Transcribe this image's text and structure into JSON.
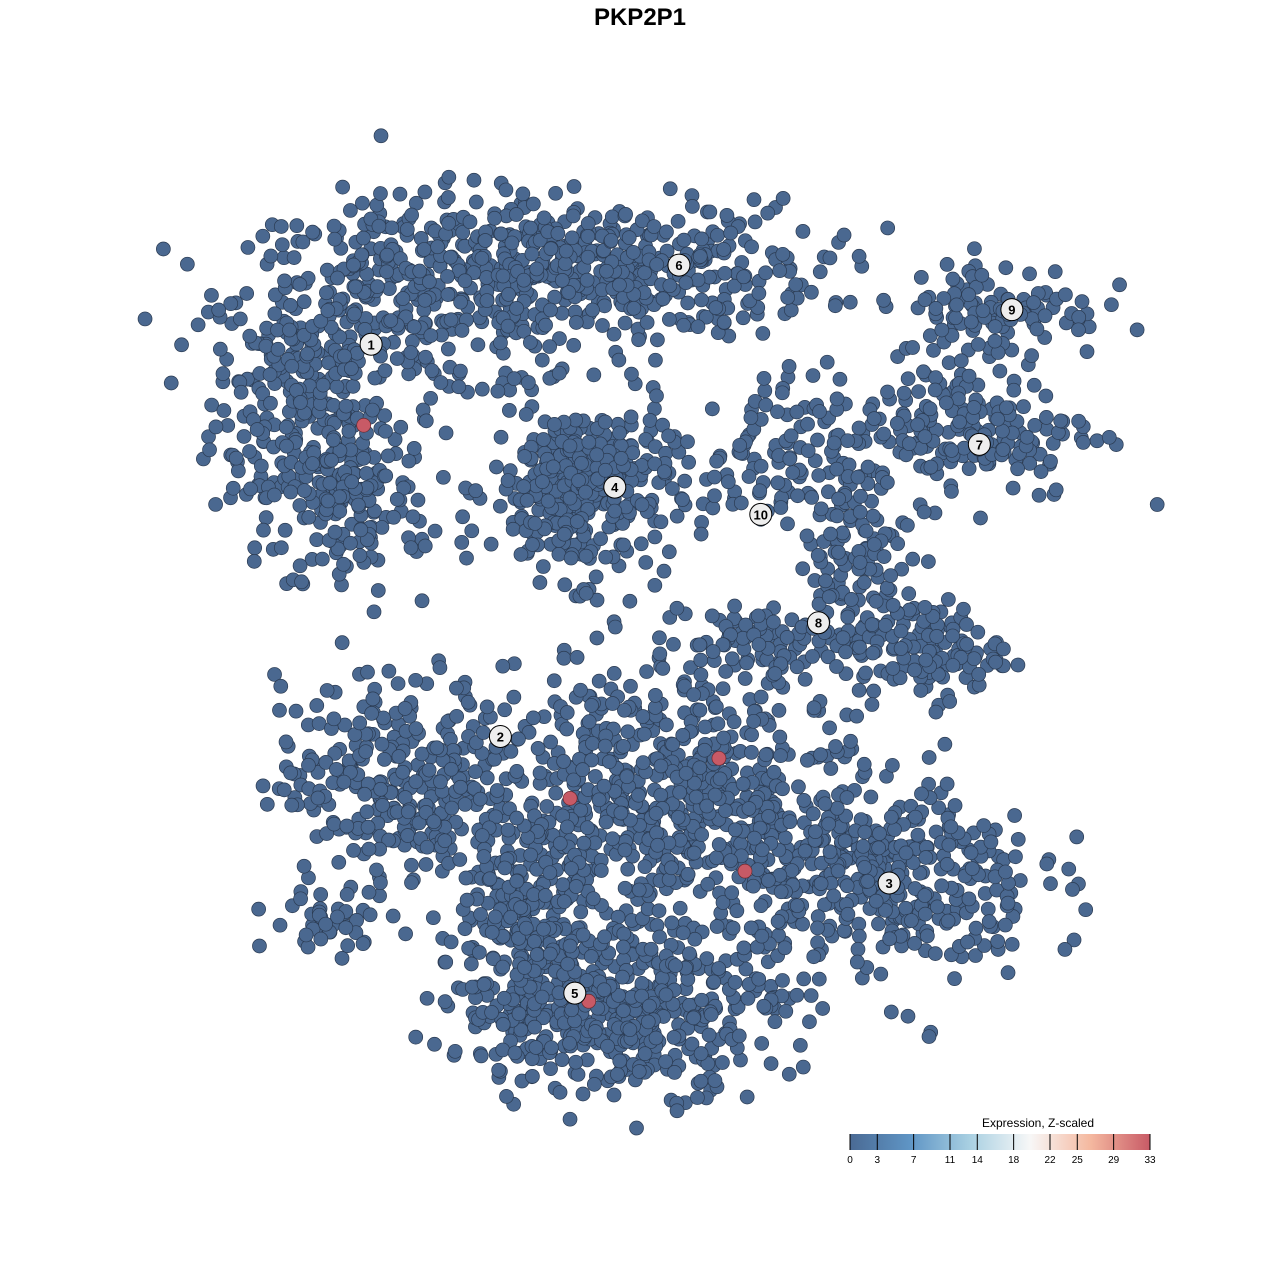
{
  "chart_data": {
    "type": "scatter",
    "title": "PKP2P1",
    "xlabel": "",
    "ylabel": "",
    "xlim": [
      0,
      100
    ],
    "ylim": [
      0,
      100
    ],
    "grid": false,
    "axes_visible": false,
    "point_color_low": "#4a6890",
    "point_color_high": "#c85a66",
    "clusters": [
      {
        "label": "1",
        "label_pos": [
          18.4,
          82.5
        ]
      },
      {
        "label": "2",
        "label_pos": [
          32.3,
          39.4
        ]
      },
      {
        "label": "3",
        "label_pos": [
          74.1,
          23.3
        ]
      },
      {
        "label": "4",
        "label_pos": [
          44.6,
          66.8
        ]
      },
      {
        "label": "5",
        "label_pos": [
          40.3,
          11.2
        ]
      },
      {
        "label": "6",
        "label_pos": [
          51.5,
          91.2
        ]
      },
      {
        "label": "7",
        "label_pos": [
          83.8,
          71.5
        ]
      },
      {
        "label": "8",
        "label_pos": [
          66.5,
          51.9
        ]
      },
      {
        "label": "9",
        "label_pos": [
          87.3,
          86.3
        ]
      },
      {
        "label": "10",
        "label_pos": [
          60.3,
          63.8
        ]
      }
    ],
    "point_groups": [
      {
        "center": [
          10.8,
          76.4
        ],
        "spread": [
          4.8,
          7.7
        ],
        "n": 250
      },
      {
        "center": [
          23.7,
          87.4
        ],
        "spread": [
          9.7,
          5.5
        ],
        "n": 300
      },
      {
        "center": [
          16.1,
          65.4
        ],
        "spread": [
          4.3,
          5.5
        ],
        "n": 150
      },
      {
        "center": [
          43.0,
          90.7
        ],
        "spread": [
          11.8,
          3.8
        ],
        "n": 450
      },
      {
        "center": [
          40.9,
          66.5
        ],
        "spread": [
          4.8,
          4.9
        ],
        "n": 350
      },
      {
        "center": [
          60.2,
          69.8
        ],
        "spread": [
          4.3,
          4.4
        ],
        "n": 90
      },
      {
        "center": [
          81.7,
          73.1
        ],
        "spread": [
          7.5,
          3.8
        ],
        "n": 200
      },
      {
        "center": [
          86.0,
          86.3
        ],
        "spread": [
          5.4,
          2.7
        ],
        "n": 110
      },
      {
        "center": [
          69.9,
          58.8
        ],
        "spread": [
          3.2,
          5.5
        ],
        "n": 120
      },
      {
        "center": [
          78.5,
          48.9
        ],
        "spread": [
          3.8,
          2.7
        ],
        "n": 120
      },
      {
        "center": [
          60.2,
          50.0
        ],
        "spread": [
          5.4,
          2.2
        ],
        "n": 80
      },
      {
        "center": [
          21.5,
          34.6
        ],
        "spread": [
          6.5,
          5.5
        ],
        "n": 300
      },
      {
        "center": [
          73.1,
          23.6
        ],
        "spread": [
          8.6,
          5.5
        ],
        "n": 400
      },
      {
        "center": [
          49.5,
          32.4
        ],
        "spread": [
          9.7,
          7.7
        ],
        "n": 700
      },
      {
        "center": [
          45.2,
          9.3
        ],
        "spread": [
          8.6,
          4.4
        ],
        "n": 450
      },
      {
        "center": [
          34.4,
          18.1
        ],
        "spread": [
          4.3,
          5.5
        ],
        "n": 200
      },
      {
        "center": [
          14.0,
          19.2
        ],
        "spread": [
          3.2,
          1.6
        ],
        "n": 40
      }
    ],
    "high_expression_points": [
      {
        "x": 17.6,
        "y": 73.6,
        "value": 33
      },
      {
        "x": 39.8,
        "y": 32.6,
        "value": 33
      },
      {
        "x": 55.8,
        "y": 37.0,
        "value": 33
      },
      {
        "x": 58.6,
        "y": 24.6,
        "value": 33
      },
      {
        "x": 41.8,
        "y": 10.3,
        "value": 33
      }
    ],
    "legend": {
      "title": "Expression, Z-scaled",
      "position": "bottom-right",
      "range": [
        0,
        33
      ],
      "ticks": [
        "0",
        "3",
        "7",
        "11",
        "14",
        "18",
        "22",
        "25",
        "29",
        "33"
      ],
      "colors": [
        "#4a6a94",
        "#5f95c5",
        "#a9d0e2",
        "#f7f7f7",
        "#f5b9a0",
        "#c85a66"
      ]
    }
  }
}
